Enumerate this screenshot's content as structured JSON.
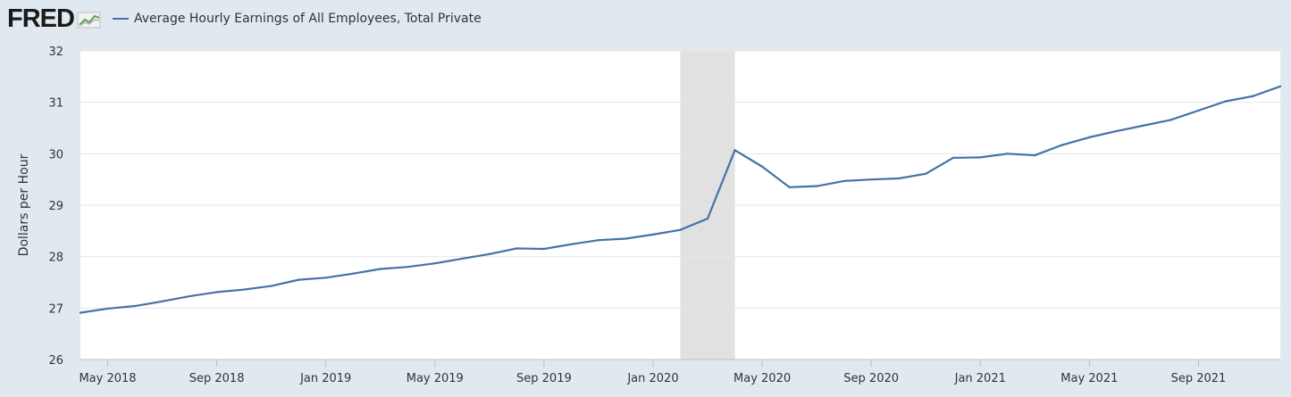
{
  "brand": {
    "logo_text": "FRED"
  },
  "colors": {
    "series": "#4572a7",
    "recession": "#e1e1e1",
    "background": "#e1e9f0",
    "plot": "#ffffff",
    "grid": "#e6e6e6"
  },
  "chart_data": {
    "type": "line",
    "ylabel": "Dollars per Hour",
    "xlabel": "",
    "ylim": [
      26,
      32
    ],
    "xlim": [
      "2018-04",
      "2021-12"
    ],
    "yticks": [
      "26",
      "27",
      "28",
      "29",
      "30",
      "31",
      "32"
    ],
    "xticks": [
      {
        "date": "2018-05",
        "label": "May 2018"
      },
      {
        "date": "2018-09",
        "label": "Sep 2018"
      },
      {
        "date": "2019-01",
        "label": "Jan 2019"
      },
      {
        "date": "2019-05",
        "label": "May 2019"
      },
      {
        "date": "2019-09",
        "label": "Sep 2019"
      },
      {
        "date": "2020-01",
        "label": "Jan 2020"
      },
      {
        "date": "2020-05",
        "label": "May 2020"
      },
      {
        "date": "2020-09",
        "label": "Sep 2020"
      },
      {
        "date": "2021-01",
        "label": "Jan 2021"
      },
      {
        "date": "2021-05",
        "label": "May 2021"
      },
      {
        "date": "2021-09",
        "label": "Sep 2021"
      }
    ],
    "grid": true,
    "legend": "top-left",
    "recession": {
      "start": "2020-02",
      "end": "2020-04"
    },
    "series": [
      {
        "name": "Average Hourly Earnings of All Employees, Total Private",
        "x": [
          "2018-04",
          "2018-05",
          "2018-06",
          "2018-07",
          "2018-08",
          "2018-09",
          "2018-10",
          "2018-11",
          "2018-12",
          "2019-01",
          "2019-02",
          "2019-03",
          "2019-04",
          "2019-05",
          "2019-06",
          "2019-07",
          "2019-08",
          "2019-09",
          "2019-10",
          "2019-11",
          "2019-12",
          "2020-01",
          "2020-02",
          "2020-03",
          "2020-04",
          "2020-05",
          "2020-06",
          "2020-07",
          "2020-08",
          "2020-09",
          "2020-10",
          "2020-11",
          "2020-12",
          "2021-01",
          "2021-02",
          "2021-03",
          "2021-04",
          "2021-05",
          "2021-06",
          "2021-07",
          "2021-08",
          "2021-09",
          "2021-10",
          "2021-11",
          "2021-12"
        ],
        "values": [
          26.91,
          26.99,
          27.04,
          27.13,
          27.23,
          27.31,
          27.36,
          27.43,
          27.55,
          27.59,
          27.67,
          27.76,
          27.8,
          27.87,
          27.96,
          28.05,
          28.16,
          28.15,
          28.24,
          28.32,
          28.35,
          28.43,
          28.52,
          28.74,
          30.07,
          29.75,
          29.35,
          29.37,
          29.47,
          29.5,
          29.52,
          29.61,
          29.92,
          29.93,
          30.0,
          29.97,
          30.17,
          30.32,
          30.44,
          30.55,
          30.66,
          30.84,
          31.02,
          31.12,
          31.31
        ]
      }
    ]
  }
}
